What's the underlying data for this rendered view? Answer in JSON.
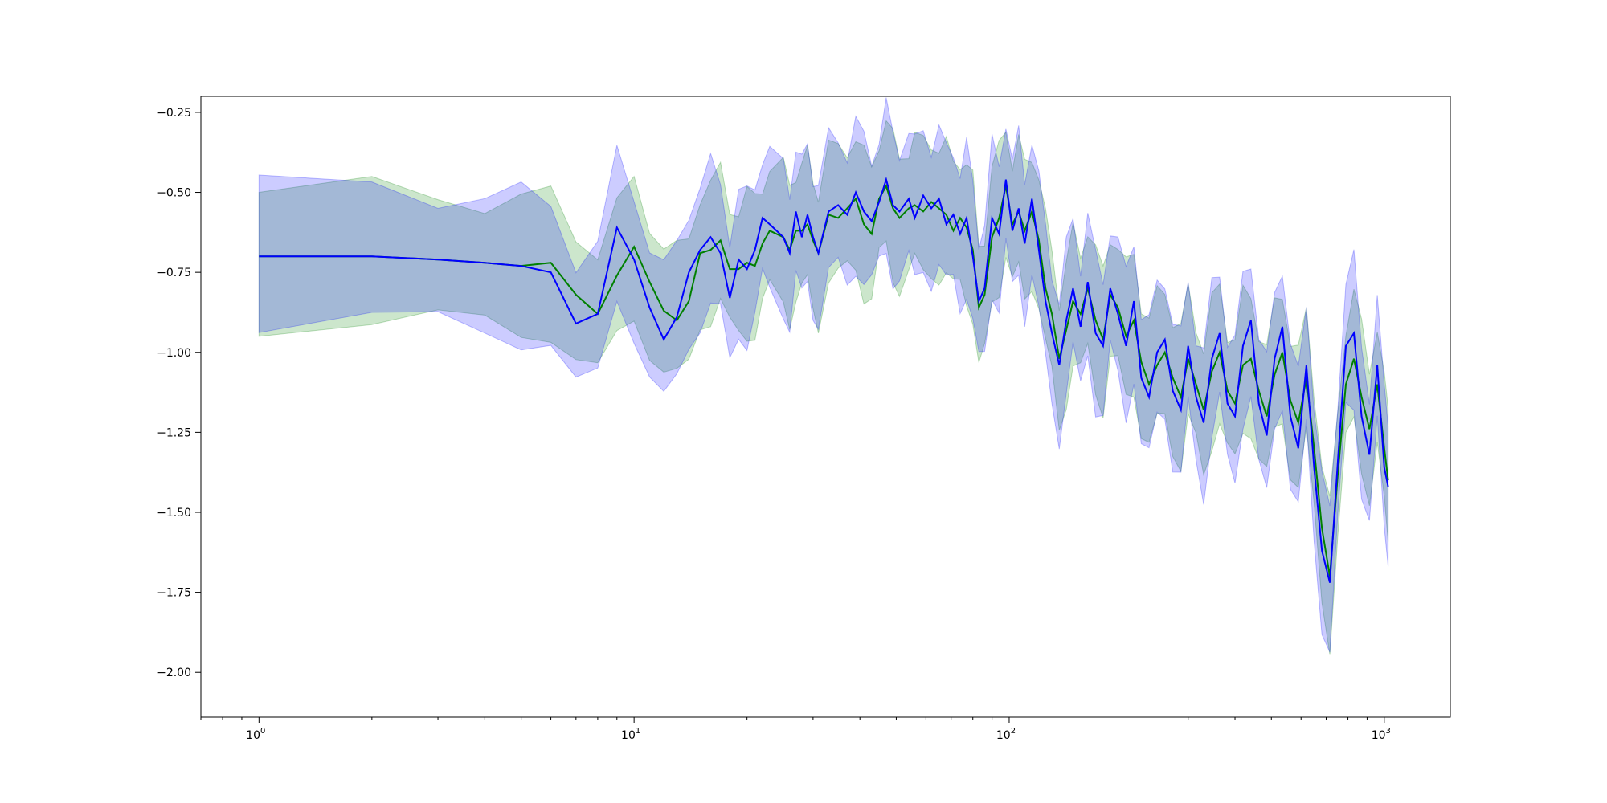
{
  "chart_data": {
    "type": "line",
    "title": "",
    "xlabel": "",
    "ylabel": "",
    "x_scale": "log",
    "xlim": [
      0.7,
      1500
    ],
    "ylim": [
      -2.14,
      -0.2
    ],
    "grid": false,
    "legend": "none",
    "x_ticks": [
      {
        "value": 1,
        "base": "10",
        "exp": "0"
      },
      {
        "value": 10,
        "base": "10",
        "exp": "1"
      },
      {
        "value": 100,
        "base": "10",
        "exp": "2"
      },
      {
        "value": 1000,
        "base": "10",
        "exp": "3"
      }
    ],
    "y_ticks": [
      {
        "value": -0.25,
        "label": "−0.25"
      },
      {
        "value": -0.5,
        "label": "−0.50"
      },
      {
        "value": -0.75,
        "label": "−0.75"
      },
      {
        "value": -1.0,
        "label": "−1.00"
      },
      {
        "value": -1.25,
        "label": "−1.25"
      },
      {
        "value": -1.5,
        "label": "−1.50"
      },
      {
        "value": -1.75,
        "label": "−1.75"
      },
      {
        "value": -2.0,
        "label": "−2.00"
      }
    ],
    "series": [
      {
        "color": "#008000",
        "band_color": "#008000",
        "band_opacity": 0.2,
        "band_width": 0.2,
        "points": [
          [
            1,
            -0.7
          ],
          [
            2,
            -0.7
          ],
          [
            3,
            -0.71
          ],
          [
            4,
            -0.72
          ],
          [
            5,
            -0.73
          ],
          [
            6,
            -0.72
          ],
          [
            7,
            -0.82
          ],
          [
            8,
            -0.88
          ],
          [
            9,
            -0.76
          ],
          [
            10,
            -0.67
          ],
          [
            11,
            -0.78
          ],
          [
            12,
            -0.87
          ],
          [
            13,
            -0.9
          ],
          [
            14,
            -0.84
          ],
          [
            15,
            -0.69
          ],
          [
            16,
            -0.68
          ],
          [
            17,
            -0.65
          ],
          [
            18,
            -0.74
          ],
          [
            19,
            -0.74
          ],
          [
            20,
            -0.72
          ],
          [
            21,
            -0.73
          ],
          [
            22,
            -0.66
          ],
          [
            23,
            -0.62
          ],
          [
            25,
            -0.64
          ],
          [
            26,
            -0.68
          ],
          [
            27,
            -0.62
          ],
          [
            28,
            -0.62
          ],
          [
            29,
            -0.6
          ],
          [
            30,
            -0.65
          ],
          [
            31,
            -0.69
          ],
          [
            33,
            -0.57
          ],
          [
            35,
            -0.58
          ],
          [
            37,
            -0.55
          ],
          [
            39,
            -0.52
          ],
          [
            41,
            -0.6
          ],
          [
            43,
            -0.63
          ],
          [
            45,
            -0.52
          ],
          [
            47,
            -0.48
          ],
          [
            49,
            -0.55
          ],
          [
            51,
            -0.58
          ],
          [
            54,
            -0.55
          ],
          [
            56,
            -0.54
          ],
          [
            59,
            -0.56
          ],
          [
            62,
            -0.53
          ],
          [
            65,
            -0.55
          ],
          [
            68,
            -0.57
          ],
          [
            71,
            -0.62
          ],
          [
            74,
            -0.58
          ],
          [
            77,
            -0.61
          ],
          [
            80,
            -0.68
          ],
          [
            83,
            -0.86
          ],
          [
            86,
            -0.82
          ],
          [
            90,
            -0.64
          ],
          [
            94,
            -0.58
          ],
          [
            98,
            -0.48
          ],
          [
            102,
            -0.6
          ],
          [
            106,
            -0.56
          ],
          [
            110,
            -0.62
          ],
          [
            115,
            -0.56
          ],
          [
            120,
            -0.65
          ],
          [
            125,
            -0.8
          ],
          [
            130,
            -0.88
          ],
          [
            136,
            -1.02
          ],
          [
            142,
            -0.93
          ],
          [
            148,
            -0.84
          ],
          [
            155,
            -0.88
          ],
          [
            162,
            -0.8
          ],
          [
            170,
            -0.9
          ],
          [
            178,
            -0.96
          ],
          [
            186,
            -0.82
          ],
          [
            195,
            -0.86
          ],
          [
            205,
            -0.95
          ],
          [
            215,
            -0.9
          ],
          [
            225,
            -1.03
          ],
          [
            236,
            -1.1
          ],
          [
            248,
            -1.04
          ],
          [
            260,
            -1.0
          ],
          [
            273,
            -1.08
          ],
          [
            287,
            -1.14
          ],
          [
            300,
            -1.02
          ],
          [
            315,
            -1.1
          ],
          [
            330,
            -1.18
          ],
          [
            347,
            -1.06
          ],
          [
            364,
            -1.0
          ],
          [
            382,
            -1.12
          ],
          [
            400,
            -1.16
          ],
          [
            420,
            -1.04
          ],
          [
            441,
            -1.02
          ],
          [
            463,
            -1.12
          ],
          [
            486,
            -1.2
          ],
          [
            510,
            -1.07
          ],
          [
            535,
            -1.0
          ],
          [
            562,
            -1.15
          ],
          [
            590,
            -1.22
          ],
          [
            620,
            -1.08
          ],
          [
            650,
            -1.3
          ],
          [
            682,
            -1.55
          ],
          [
            716,
            -1.7
          ],
          [
            752,
            -1.38
          ],
          [
            790,
            -1.1
          ],
          [
            830,
            -1.02
          ],
          [
            870,
            -1.14
          ],
          [
            913,
            -1.24
          ],
          [
            958,
            -1.1
          ],
          [
            1000,
            -1.3
          ],
          [
            1024,
            -1.4
          ]
        ]
      },
      {
        "color": "#0000ff",
        "band_color": "#0000ff",
        "band_opacity": 0.2,
        "band_width": 0.21,
        "points": [
          [
            1,
            -0.7
          ],
          [
            2,
            -0.7
          ],
          [
            3,
            -0.71
          ],
          [
            4,
            -0.72
          ],
          [
            5,
            -0.73
          ],
          [
            6,
            -0.75
          ],
          [
            7,
            -0.91
          ],
          [
            8,
            -0.88
          ],
          [
            9,
            -0.61
          ],
          [
            10,
            -0.71
          ],
          [
            11,
            -0.86
          ],
          [
            12,
            -0.96
          ],
          [
            13,
            -0.89
          ],
          [
            14,
            -0.75
          ],
          [
            15,
            -0.68
          ],
          [
            16,
            -0.64
          ],
          [
            17,
            -0.69
          ],
          [
            18,
            -0.83
          ],
          [
            19,
            -0.71
          ],
          [
            20,
            -0.74
          ],
          [
            21,
            -0.68
          ],
          [
            22,
            -0.58
          ],
          [
            23,
            -0.6
          ],
          [
            25,
            -0.64
          ],
          [
            26,
            -0.69
          ],
          [
            27,
            -0.56
          ],
          [
            28,
            -0.64
          ],
          [
            29,
            -0.57
          ],
          [
            30,
            -0.64
          ],
          [
            31,
            -0.69
          ],
          [
            33,
            -0.56
          ],
          [
            35,
            -0.54
          ],
          [
            37,
            -0.57
          ],
          [
            39,
            -0.5
          ],
          [
            41,
            -0.56
          ],
          [
            43,
            -0.59
          ],
          [
            45,
            -0.53
          ],
          [
            47,
            -0.46
          ],
          [
            49,
            -0.54
          ],
          [
            51,
            -0.56
          ],
          [
            54,
            -0.52
          ],
          [
            56,
            -0.58
          ],
          [
            59,
            -0.51
          ],
          [
            62,
            -0.55
          ],
          [
            65,
            -0.52
          ],
          [
            68,
            -0.6
          ],
          [
            71,
            -0.57
          ],
          [
            74,
            -0.63
          ],
          [
            77,
            -0.58
          ],
          [
            80,
            -0.7
          ],
          [
            83,
            -0.84
          ],
          [
            86,
            -0.8
          ],
          [
            90,
            -0.58
          ],
          [
            94,
            -0.63
          ],
          [
            98,
            -0.46
          ],
          [
            102,
            -0.62
          ],
          [
            106,
            -0.55
          ],
          [
            110,
            -0.66
          ],
          [
            115,
            -0.52
          ],
          [
            120,
            -0.68
          ],
          [
            125,
            -0.84
          ],
          [
            130,
            -0.94
          ],
          [
            136,
            -1.04
          ],
          [
            142,
            -0.9
          ],
          [
            148,
            -0.8
          ],
          [
            155,
            -0.92
          ],
          [
            162,
            -0.78
          ],
          [
            170,
            -0.94
          ],
          [
            178,
            -0.98
          ],
          [
            186,
            -0.8
          ],
          [
            195,
            -0.88
          ],
          [
            205,
            -0.98
          ],
          [
            215,
            -0.84
          ],
          [
            225,
            -1.08
          ],
          [
            236,
            -1.14
          ],
          [
            248,
            -1.0
          ],
          [
            260,
            -0.96
          ],
          [
            273,
            -1.12
          ],
          [
            287,
            -1.18
          ],
          [
            300,
            -0.98
          ],
          [
            315,
            -1.14
          ],
          [
            330,
            -1.22
          ],
          [
            347,
            -1.02
          ],
          [
            364,
            -0.94
          ],
          [
            382,
            -1.16
          ],
          [
            400,
            -1.2
          ],
          [
            420,
            -0.98
          ],
          [
            441,
            -0.9
          ],
          [
            463,
            -1.16
          ],
          [
            486,
            -1.26
          ],
          [
            510,
            -1.02
          ],
          [
            535,
            -0.92
          ],
          [
            562,
            -1.2
          ],
          [
            590,
            -1.3
          ],
          [
            620,
            -1.04
          ],
          [
            650,
            -1.36
          ],
          [
            682,
            -1.62
          ],
          [
            716,
            -1.72
          ],
          [
            752,
            -1.34
          ],
          [
            790,
            -0.98
          ],
          [
            830,
            -0.94
          ],
          [
            870,
            -1.2
          ],
          [
            913,
            -1.32
          ],
          [
            958,
            -1.04
          ],
          [
            1000,
            -1.36
          ],
          [
            1024,
            -1.42
          ]
        ]
      }
    ]
  }
}
